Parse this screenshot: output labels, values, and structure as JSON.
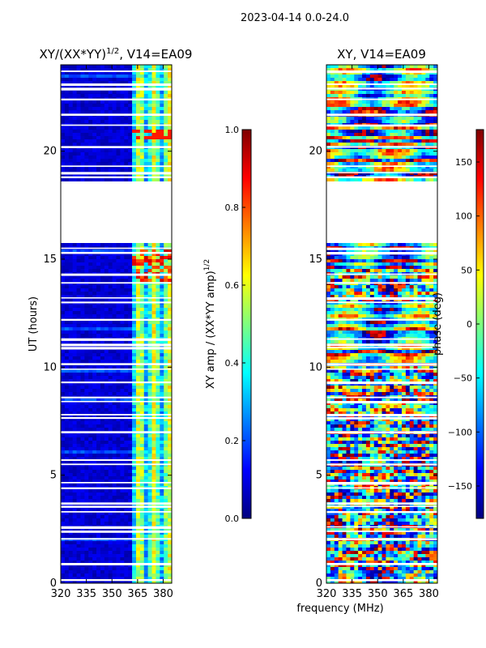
{
  "suptitle": "2023-04-14 0.0-24.0",
  "xlabel": "frequency (MHz)",
  "colors": {
    "jet": [
      "#00007f",
      "#0000ff",
      "#007fff",
      "#00ffff",
      "#7fff7f",
      "#ffff00",
      "#ff7f00",
      "#ff0000",
      "#7f0000"
    ],
    "background": "#ffffff",
    "gap": "#ffffff"
  },
  "chart_data": [
    {
      "type": "heatmap",
      "title_main": "XY/(XX*YY)",
      "title_sup": "1/2",
      "title_tail": ", V14=EA09",
      "ylabel": "UT (hours)",
      "xlim": [
        320,
        385
      ],
      "ylim": [
        0,
        24
      ],
      "xticks": [
        320,
        335,
        350,
        365,
        380
      ],
      "yticks": [
        0,
        5,
        10,
        15,
        20
      ],
      "gap_hours": [
        18.6,
        15.8
      ],
      "colorbar": {
        "label_main": "XY amp / (XX*YY amp)",
        "label_sup": "1/2",
        "range": [
          0.0,
          1.0
        ],
        "ticks": [
          "0.0",
          "0.2",
          "0.4",
          "0.6",
          "0.8",
          "1.0"
        ]
      },
      "description": "low amplitude (~0.1) below 361 MHz, higher (0.3-0.7) above 361 MHz"
    },
    {
      "type": "heatmap",
      "title_main": "XY, V14=EA09",
      "ylabel": "",
      "xlim": [
        320,
        385
      ],
      "ylim": [
        0,
        24
      ],
      "xticks": [
        320,
        335,
        350,
        365,
        380
      ],
      "yticks": [
        0,
        5,
        10,
        15,
        20
      ],
      "gap_hours": [
        18.6,
        15.8
      ],
      "colorbar": {
        "label_main": "phase (deg)",
        "range": [
          -180,
          180
        ],
        "ticks": [
          "−150",
          "−100",
          "−50",
          "0",
          "50",
          "100",
          "150"
        ]
      },
      "description": "phase noise spanning full range with horizontal banding"
    }
  ]
}
